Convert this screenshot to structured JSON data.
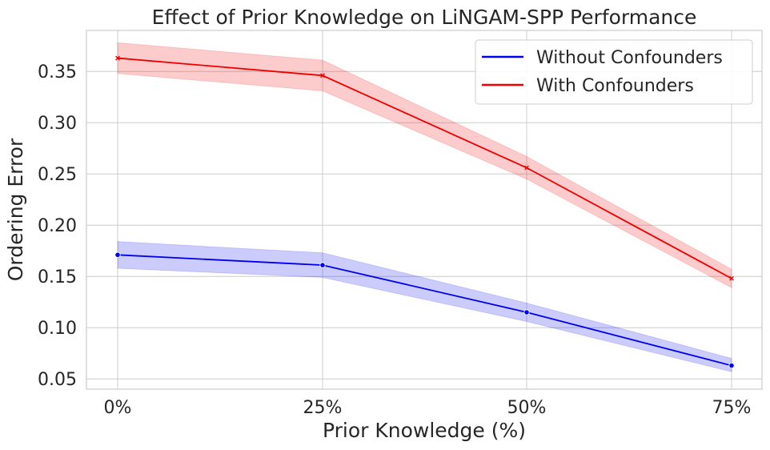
{
  "chart_data": {
    "type": "line",
    "title": "Effect of Prior Knowledge on LiNGAM-SPP Performance",
    "xlabel": "Prior Knowledge (%)",
    "ylabel": "Ordering Error",
    "categories": [
      "0%",
      "25%",
      "50%",
      "75%"
    ],
    "ylim": [
      0.04,
      0.39
    ],
    "yticks": [
      0.05,
      0.1,
      0.15,
      0.2,
      0.25,
      0.3,
      0.35
    ],
    "ytick_labels": [
      "0.05",
      "0.10",
      "0.15",
      "0.20",
      "0.25",
      "0.30",
      "0.35"
    ],
    "grid": true,
    "legend_position": "top-right",
    "series": [
      {
        "name": "Without Confounders",
        "color": "#0000ee",
        "marker": "circle",
        "values": [
          0.171,
          0.161,
          0.115,
          0.063
        ],
        "ci_low": [
          0.158,
          0.149,
          0.106,
          0.057
        ],
        "ci_high": [
          0.184,
          0.173,
          0.124,
          0.07
        ]
      },
      {
        "name": "With Confounders",
        "color": "#ee0000",
        "marker": "x",
        "values": [
          0.363,
          0.346,
          0.256,
          0.148
        ],
        "ci_low": [
          0.348,
          0.331,
          0.245,
          0.139
        ],
        "ci_high": [
          0.378,
          0.361,
          0.267,
          0.157
        ]
      }
    ]
  }
}
